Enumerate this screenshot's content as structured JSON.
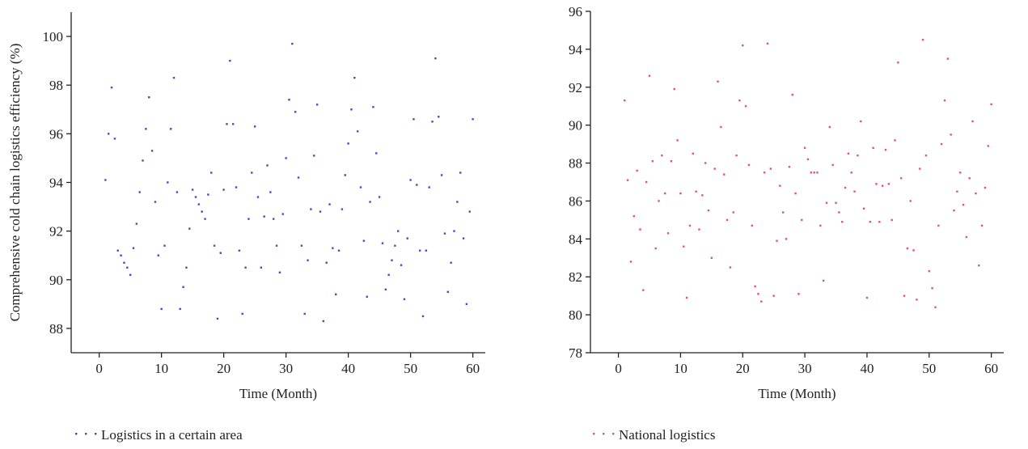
{
  "chart_data": [
    {
      "type": "scatter",
      "ylabel": "Comprehensive cold chain logistics efficiency (%)",
      "xlabel": "Time (Month)",
      "xlim": [
        -4.5,
        62
      ],
      "xticks": [
        0,
        10,
        20,
        30,
        40,
        50,
        60
      ],
      "ylim": [
        87,
        101
      ],
      "yticks": [
        88,
        90,
        92,
        94,
        96,
        98,
        100
      ],
      "series": [
        {
          "name": "Logistics in a certain area",
          "color": "#5b3fc4",
          "x": [
            1,
            1.5,
            2,
            2.5,
            3,
            3.5,
            4,
            4.5,
            5,
            5.5,
            6,
            6.5,
            7,
            7.5,
            8,
            8.5,
            9,
            9.5,
            10,
            10.5,
            11,
            11.5,
            12,
            12.5,
            13,
            13.5,
            14,
            14.5,
            15,
            15.5,
            16,
            16.5,
            17,
            17.5,
            18,
            18.5,
            19,
            19.5,
            20,
            20.5,
            21,
            21.5,
            22,
            22.5,
            23,
            23.5,
            24,
            24.5,
            25,
            25.5,
            26,
            26.5,
            27,
            27.5,
            28,
            28.5,
            29,
            29.5,
            30,
            30.5,
            31,
            31.5,
            32,
            32.5,
            33,
            33.5,
            34,
            34.5,
            35,
            35.5,
            36,
            36.5,
            37,
            37.5,
            38,
            38.5,
            39,
            39.5,
            40,
            40.5,
            41,
            41.5,
            42,
            42.5,
            43,
            43.5,
            44,
            44.5,
            45,
            45.5,
            46,
            46.5,
            47,
            47.5,
            48,
            48.5,
            49,
            49.5,
            50,
            50.5,
            51,
            51.5,
            52,
            52.5,
            53,
            53.5,
            54,
            54.5,
            55,
            55.5,
            56,
            56.5,
            57,
            57.5,
            58,
            58.5,
            59,
            59.5,
            60
          ],
          "values": [
            94.1,
            96.0,
            97.9,
            95.8,
            91.2,
            91.0,
            90.7,
            90.5,
            90.2,
            91.3,
            92.3,
            93.6,
            94.9,
            96.2,
            97.5,
            95.3,
            93.2,
            91.0,
            88.8,
            91.4,
            94.0,
            96.2,
            98.3,
            93.6,
            88.8,
            89.7,
            90.5,
            92.1,
            93.7,
            93.4,
            93.1,
            92.8,
            92.5,
            93.5,
            94.4,
            91.4,
            88.4,
            91.1,
            93.7,
            96.4,
            99.0,
            96.4,
            93.8,
            91.2,
            88.6,
            90.5,
            92.5,
            94.4,
            96.3,
            93.4,
            90.5,
            92.6,
            94.7,
            93.6,
            92.5,
            91.4,
            90.3,
            92.7,
            95.0,
            97.4,
            99.7,
            96.9,
            94.2,
            91.4,
            88.6,
            90.8,
            92.9,
            95.1,
            97.2,
            92.8,
            88.3,
            90.7,
            93.1,
            91.3,
            89.4,
            91.2,
            92.9,
            94.3,
            95.6,
            97.0,
            98.3,
            96.1,
            93.8,
            91.6,
            89.3,
            93.2,
            97.1,
            95.2,
            93.4,
            91.5,
            89.6,
            90.2,
            90.8,
            91.4,
            92.0,
            90.6,
            89.2,
            91.7,
            94.1,
            96.6,
            93.9,
            91.2,
            88.5,
            91.2,
            93.8,
            96.5,
            99.1,
            96.7,
            94.3,
            91.9,
            89.5,
            90.7,
            92.0,
            93.2,
            94.4,
            91.7,
            89.0,
            92.8,
            96.6
          ]
        }
      ]
    },
    {
      "type": "scatter",
      "xlabel": "Time (Month)",
      "xlim": [
        -4.5,
        62
      ],
      "xticks": [
        0,
        10,
        20,
        30,
        40,
        50,
        60
      ],
      "ylim": [
        78,
        96
      ],
      "yticks": [
        78,
        80,
        82,
        84,
        86,
        88,
        90,
        92,
        94,
        96
      ],
      "series": [
        {
          "name": "National logistics",
          "color": "#e0508c",
          "x": [
            1,
            1.5,
            2,
            2.5,
            3,
            3.5,
            4,
            4.5,
            5,
            5.5,
            6,
            6.5,
            7,
            7.5,
            8,
            8.5,
            9,
            9.5,
            10,
            10.5,
            11,
            11.5,
            12,
            12.5,
            13,
            13.5,
            14,
            14.5,
            15,
            15.5,
            16,
            16.5,
            17,
            17.5,
            18,
            18.5,
            19,
            19.5,
            20,
            20.5,
            21,
            21.5,
            22,
            22.5,
            23,
            23.5,
            24,
            24.5,
            25,
            25.5,
            26,
            26.5,
            27,
            27.5,
            28,
            28.5,
            29,
            29.5,
            30,
            30.5,
            31,
            31.5,
            32,
            32.5,
            33,
            33.5,
            34,
            34.5,
            35,
            35.5,
            36,
            36.5,
            37,
            37.5,
            38,
            38.5,
            39,
            39.5,
            40,
            40.5,
            41,
            41.5,
            42,
            42.5,
            43,
            43.5,
            44,
            44.5,
            45,
            45.5,
            46,
            46.5,
            47,
            47.5,
            48,
            48.5,
            49,
            49.5,
            50,
            50.5,
            51,
            51.5,
            52,
            52.5,
            53,
            53.5,
            54,
            54.5,
            55,
            55.5,
            56,
            56.5,
            57,
            57.5,
            58,
            58.5,
            59,
            59.5,
            60
          ],
          "values": [
            91.3,
            87.1,
            82.8,
            85.2,
            87.6,
            84.5,
            81.3,
            87.0,
            92.6,
            88.1,
            83.5,
            86.0,
            88.4,
            86.4,
            84.3,
            88.1,
            91.9,
            89.2,
            86.4,
            83.6,
            80.9,
            84.7,
            88.5,
            86.5,
            84.5,
            86.3,
            88.0,
            85.5,
            83.0,
            87.7,
            92.3,
            89.9,
            87.4,
            85.0,
            82.5,
            85.4,
            88.4,
            91.3,
            94.2,
            91.0,
            87.9,
            84.7,
            81.5,
            81.1,
            80.7,
            87.5,
            94.3,
            87.7,
            81.0,
            83.9,
            86.8,
            85.4,
            84.0,
            87.8,
            91.6,
            86.4,
            81.1,
            85.0,
            88.8,
            88.2,
            87.5,
            87.5,
            87.5,
            84.7,
            81.8,
            85.9,
            89.9,
            87.9,
            85.9,
            85.4,
            84.9,
            86.7,
            88.5,
            87.5,
            86.5,
            88.4,
            90.2,
            85.6,
            80.9,
            84.9,
            88.8,
            86.9,
            84.9,
            86.8,
            88.7,
            86.9,
            85.0,
            89.2,
            93.3,
            87.2,
            81.0,
            83.5,
            86.0,
            83.4,
            80.8,
            87.7,
            94.5,
            88.4,
            82.3,
            81.4,
            80.4,
            84.7,
            89.0,
            91.3,
            93.5,
            89.5,
            85.5,
            86.5,
            87.5,
            85.8,
            84.1,
            87.2,
            90.2,
            86.4,
            82.6,
            84.7,
            86.7,
            88.9,
            91.1
          ]
        }
      ]
    }
  ]
}
